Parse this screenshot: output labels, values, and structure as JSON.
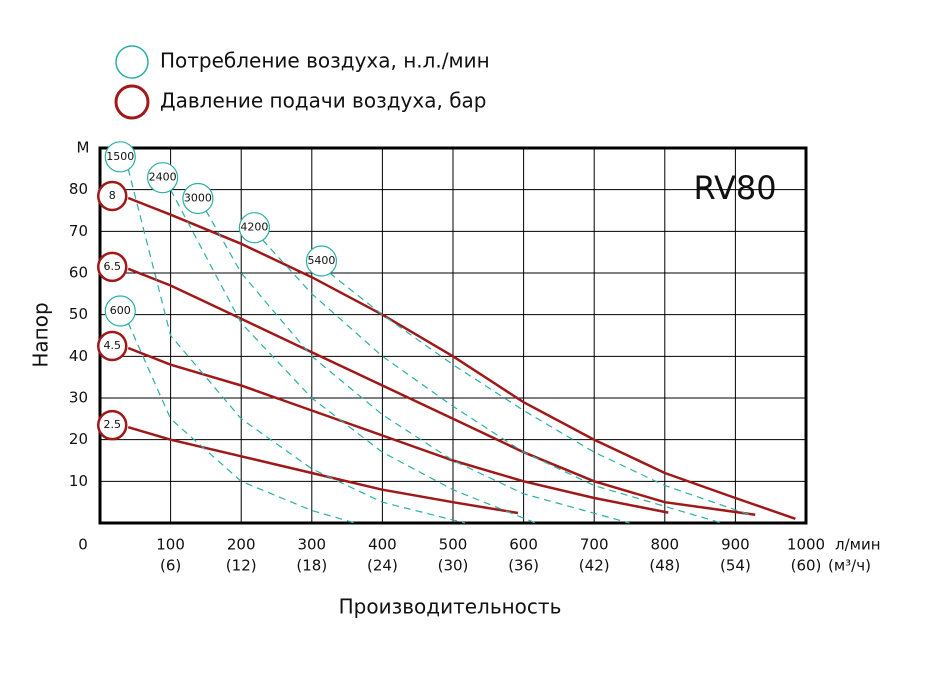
{
  "chart_data": {
    "type": "line",
    "model": "RV80",
    "x_label": "Производительность",
    "x_unit": "л/мин",
    "x2_unit": "(м³/ч)",
    "y_label": "Напор",
    "y_unit": "М",
    "xlim": [
      0,
      1000
    ],
    "ylim": [
      0,
      90
    ],
    "xticks": [
      0,
      100,
      200,
      300,
      400,
      500,
      600,
      700,
      800,
      900,
      1000
    ],
    "x2ticks": [
      {
        "value": 100,
        "label": "(6)"
      },
      {
        "value": 200,
        "label": "(12)"
      },
      {
        "value": 300,
        "label": "(18)"
      },
      {
        "value": 400,
        "label": "(24)"
      },
      {
        "value": 500,
        "label": "(30)"
      },
      {
        "value": 600,
        "label": "(36)"
      },
      {
        "value": 700,
        "label": "(42)"
      },
      {
        "value": 800,
        "label": "(48)"
      },
      {
        "value": 900,
        "label": "(54)"
      },
      {
        "value": 1000,
        "label": "(60)"
      }
    ],
    "yticks": [
      10,
      20,
      30,
      40,
      50,
      60,
      70,
      80
    ],
    "grid": true,
    "legend": [
      {
        "label": "Потребление воздуха, н.л./мин",
        "color": "#2bb0a4"
      },
      {
        "label": "Давление подачи воздуха, бар",
        "color": "#a01818"
      }
    ],
    "series": [
      {
        "name": "8",
        "color": "#a01818",
        "line_style": "solid",
        "x": [
          40,
          100,
          200,
          300,
          400,
          500,
          600,
          700,
          800,
          900,
          985
        ],
        "values": [
          78,
          74,
          67,
          59,
          50,
          40,
          29,
          20,
          12,
          6,
          1
        ]
      },
      {
        "name": "6.5",
        "color": "#a01818",
        "line_style": "solid",
        "x": [
          40,
          100,
          200,
          300,
          400,
          500,
          600,
          700,
          800,
          928
        ],
        "values": [
          61,
          57,
          49,
          41,
          33,
          25,
          17,
          10,
          5,
          2
        ]
      },
      {
        "name": "4.5",
        "color": "#a01818",
        "line_style": "solid",
        "x": [
          40,
          100,
          200,
          300,
          400,
          500,
          600,
          700,
          805
        ],
        "values": [
          42,
          38,
          33,
          27,
          21,
          15,
          10,
          6,
          2.5
        ]
      },
      {
        "name": "2.5",
        "color": "#a01818",
        "line_style": "solid",
        "x": [
          40,
          100,
          200,
          300,
          400,
          500,
          592
        ],
        "values": [
          23,
          20,
          16,
          12,
          8,
          5,
          2.4
        ]
      },
      {
        "name": "1500",
        "color": "#2bb0a4",
        "line_style": "dashed",
        "x": [
          40,
          100,
          200,
          300,
          400,
          517
        ],
        "values": [
          85,
          45,
          25,
          13,
          5,
          0
        ]
      },
      {
        "name": "2400",
        "color": "#2bb0a4",
        "line_style": "dashed",
        "x": [
          100,
          200,
          300,
          400,
          500,
          617
        ],
        "values": [
          80,
          48,
          30,
          17,
          8,
          0
        ]
      },
      {
        "name": "3000",
        "color": "#2bb0a4",
        "line_style": "dashed",
        "x": [
          150,
          200,
          300,
          400,
          500,
          600,
          750
        ],
        "values": [
          75,
          60,
          40,
          26,
          15,
          7,
          0
        ]
      },
      {
        "name": "4200",
        "color": "#2bb0a4",
        "line_style": "dashed",
        "x": [
          230,
          300,
          400,
          500,
          600,
          700,
          880
        ],
        "values": [
          68,
          55,
          40,
          28,
          17,
          9,
          0
        ]
      },
      {
        "name": "5400",
        "color": "#2bb0a4",
        "line_style": "dashed",
        "x": [
          325,
          400,
          500,
          600,
          700,
          800,
          920
        ],
        "values": [
          60,
          50,
          38,
          27,
          17,
          9,
          2
        ]
      },
      {
        "name": "600",
        "color": "#2bb0a4",
        "line_style": "dashed",
        "x": [
          40,
          100,
          200,
          300,
          361
        ],
        "values": [
          48,
          25,
          10,
          3,
          0
        ]
      }
    ]
  }
}
